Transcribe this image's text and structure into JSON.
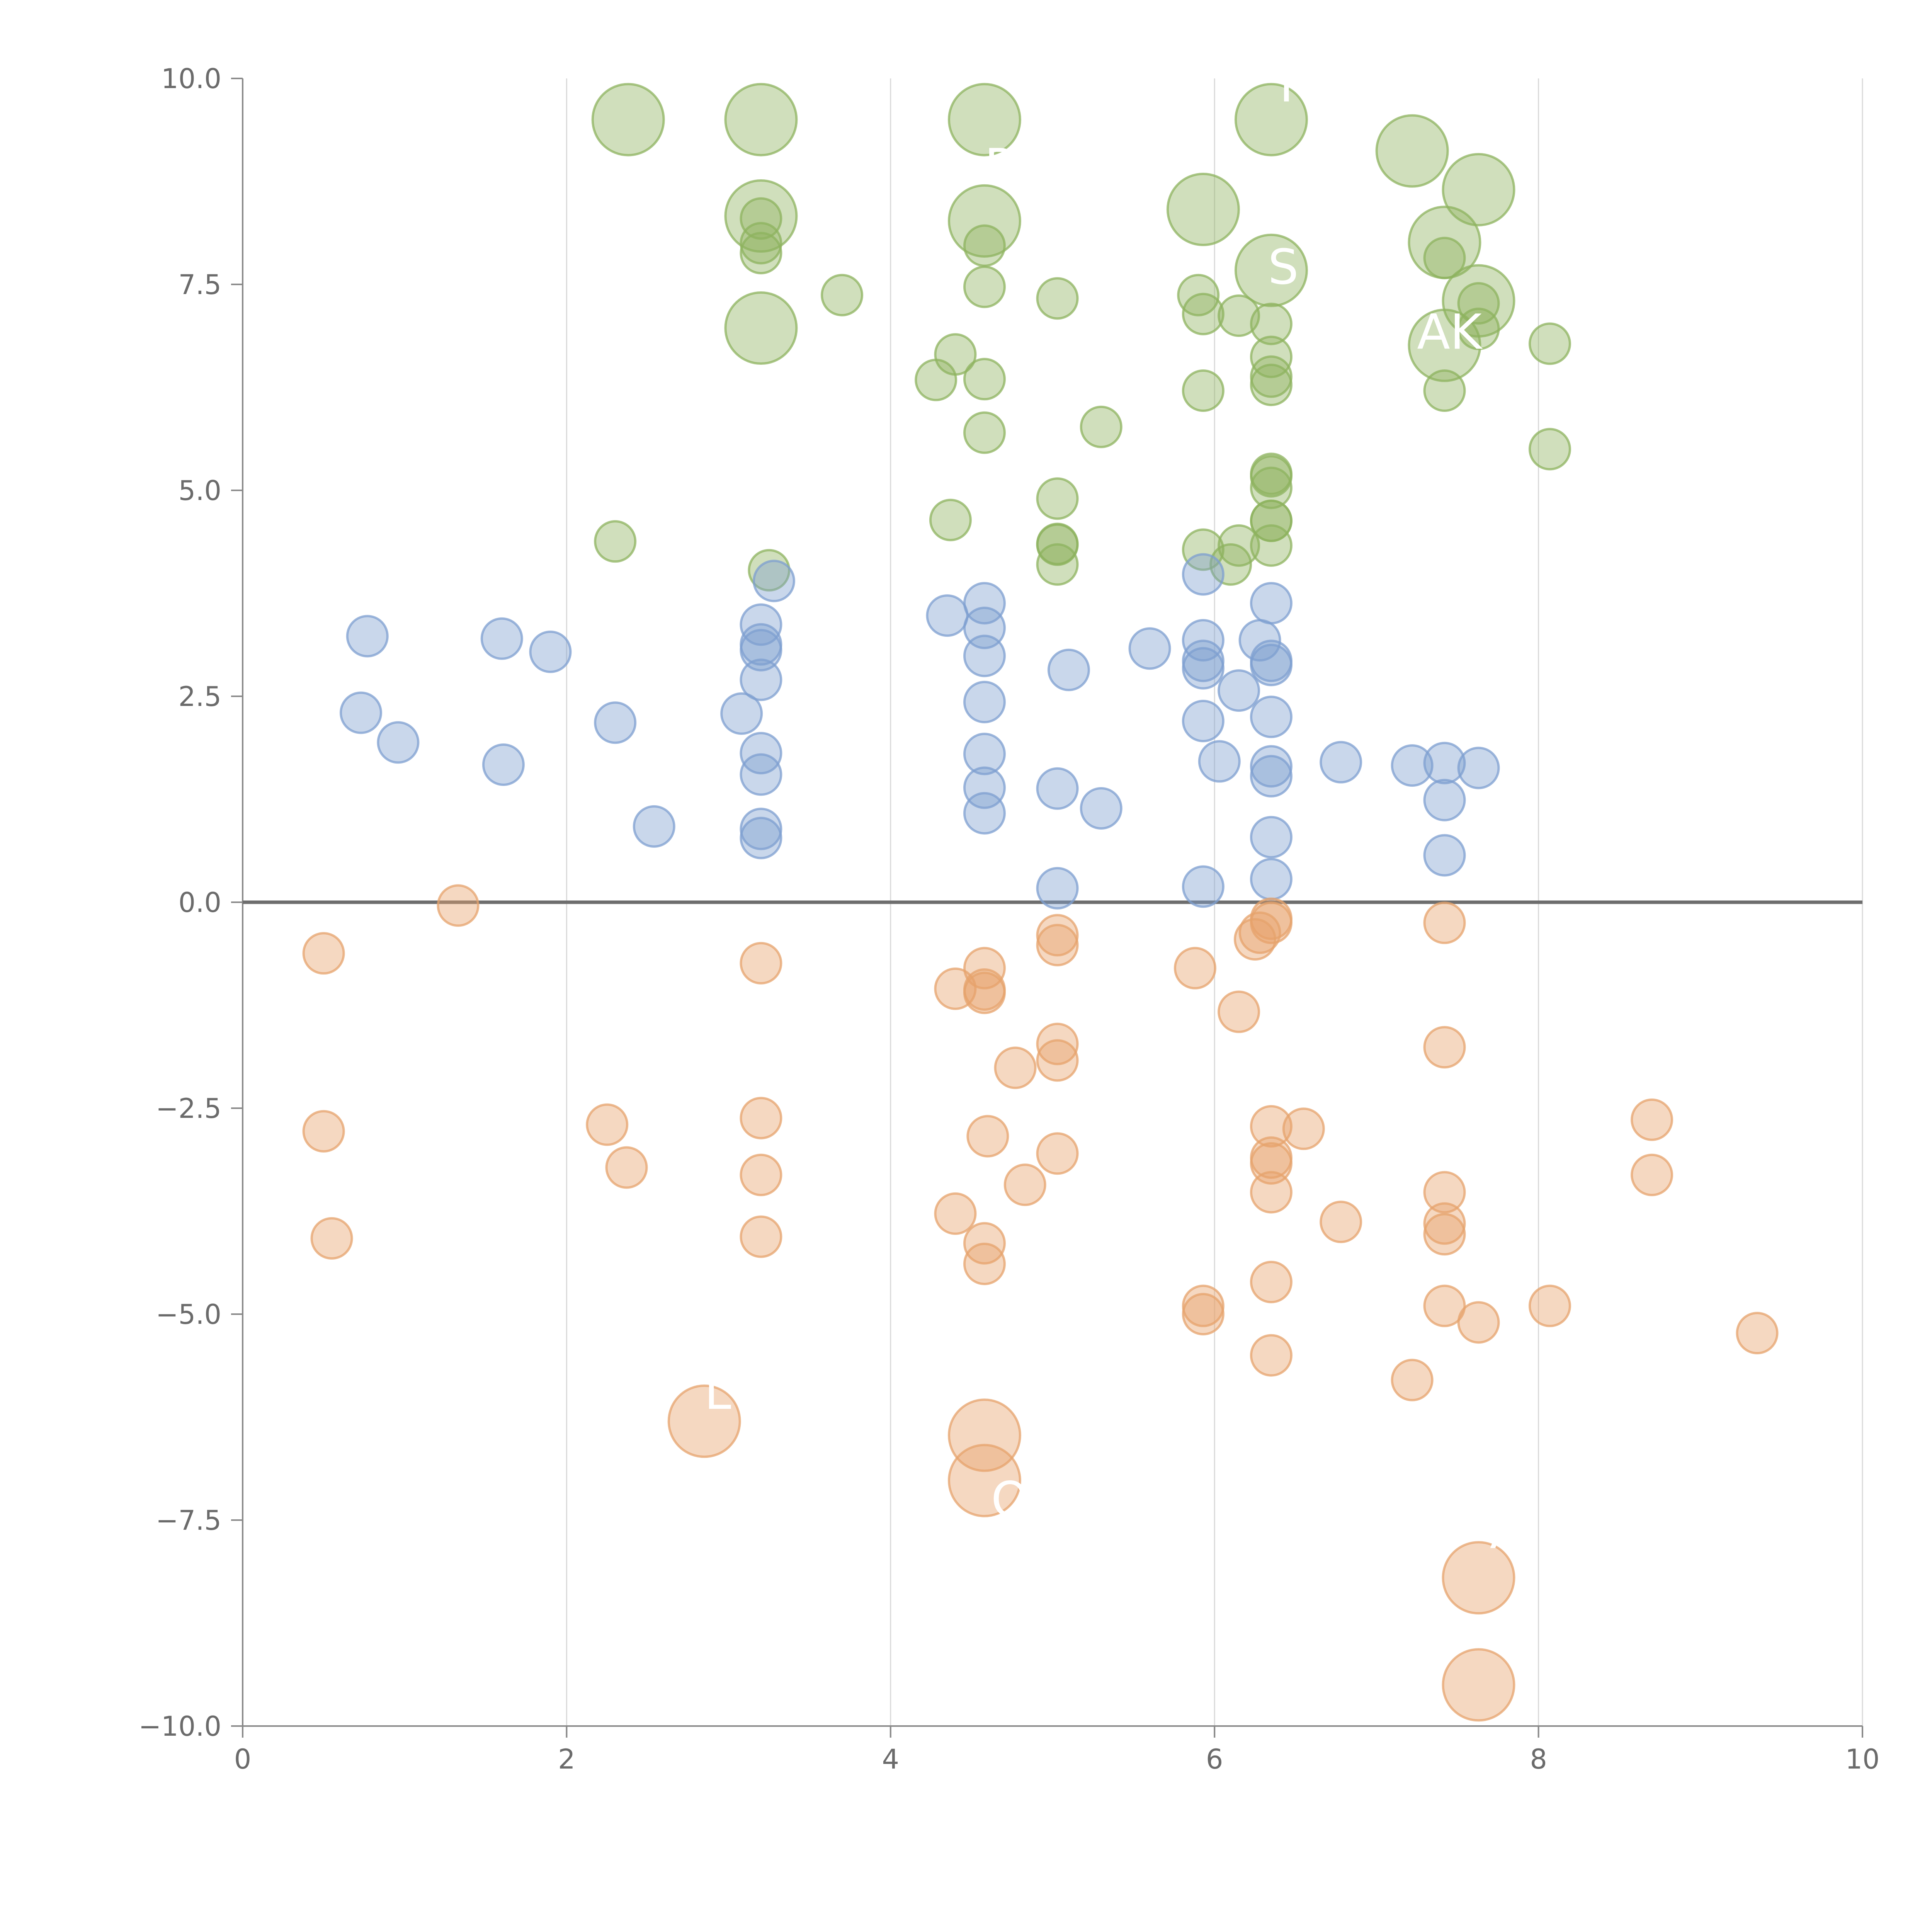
{
  "chart_data": {
    "type": "scatter",
    "title": "",
    "xlabel": "",
    "ylabel": "",
    "xlim": [
      0,
      10
    ],
    "ylim": [
      -10,
      10
    ],
    "x_ticks": [
      "0",
      "2",
      "4",
      "6",
      "8",
      "10"
    ],
    "y_ticks": [
      "−10.0",
      "−7.5",
      "−5.0",
      "−2.5",
      "0.0",
      "2.5",
      "5.0",
      "7.5",
      "10.0"
    ],
    "x_tick_values": [
      0,
      2,
      4,
      6,
      8,
      10
    ],
    "y_tick_values": [
      -10,
      -7.5,
      -5,
      -2.5,
      0,
      2.5,
      5,
      7.5,
      10
    ],
    "grid_x": true,
    "grid_y": false,
    "zero_line": true,
    "series": [
      {
        "color": "#8eb35f",
        "points": [
          [
            2.38,
            9.5,
            2
          ],
          [
            3.2,
            9.5,
            2
          ],
          [
            4.58,
            9.5,
            2
          ],
          [
            6.35,
            9.5,
            2
          ],
          [
            7.22,
            9.12,
            2
          ],
          [
            7.63,
            8.65,
            2
          ],
          [
            3.2,
            8.33,
            2
          ],
          [
            4.58,
            8.27,
            2
          ],
          [
            5.93,
            8.41,
            2
          ],
          [
            7.42,
            8.01,
            2
          ],
          [
            6.35,
            7.67,
            2
          ],
          [
            7.63,
            7.3,
            2
          ],
          [
            3.2,
            6.97,
            2
          ],
          [
            7.42,
            6.76,
            2
          ],
          [
            3.2,
            8.3,
            1
          ],
          [
            3.2,
            8.0,
            1
          ],
          [
            3.2,
            7.88,
            1
          ],
          [
            4.58,
            7.97,
            1
          ],
          [
            4.58,
            7.47,
            1
          ],
          [
            3.7,
            7.37,
            1
          ],
          [
            5.03,
            7.33,
            1
          ],
          [
            5.9,
            7.37,
            1
          ],
          [
            5.93,
            7.14,
            1
          ],
          [
            6.15,
            7.12,
            1
          ],
          [
            6.35,
            7.02,
            1
          ],
          [
            7.42,
            7.82,
            1
          ],
          [
            7.63,
            7.27,
            1
          ],
          [
            7.63,
            6.96,
            1
          ],
          [
            8.07,
            6.78,
            1
          ],
          [
            4.4,
            6.65,
            1
          ],
          [
            4.28,
            6.34,
            1
          ],
          [
            4.58,
            6.35,
            1
          ],
          [
            5.93,
            6.21,
            1
          ],
          [
            6.35,
            6.62,
            1
          ],
          [
            6.35,
            6.38,
            1
          ],
          [
            6.35,
            6.28,
            1
          ],
          [
            7.42,
            6.21,
            1
          ],
          [
            5.3,
            5.77,
            1
          ],
          [
            4.58,
            5.7,
            1
          ],
          [
            8.07,
            5.5,
            1
          ],
          [
            6.35,
            5.2,
            1
          ],
          [
            6.35,
            5.17,
            1
          ],
          [
            6.35,
            5.03,
            1
          ],
          [
            5.03,
            4.9,
            1
          ],
          [
            4.37,
            4.64,
            1
          ],
          [
            6.35,
            4.63,
            1
          ],
          [
            6.35,
            4.63,
            1
          ],
          [
            2.3,
            4.38,
            1
          ],
          [
            5.03,
            4.35,
            1
          ],
          [
            5.03,
            4.34,
            1
          ],
          [
            5.93,
            4.28,
            1
          ],
          [
            6.15,
            4.33,
            1
          ],
          [
            6.35,
            4.33,
            1
          ],
          [
            5.03,
            4.1,
            1
          ],
          [
            6.1,
            4.1,
            1
          ],
          [
            3.25,
            4.03,
            1
          ]
        ]
      },
      {
        "color": "#7e9fd0",
        "points": [
          [
            3.28,
            3.9,
            1
          ],
          [
            5.93,
            3.98,
            1
          ],
          [
            4.35,
            3.48,
            1
          ],
          [
            4.58,
            3.63,
            1
          ],
          [
            6.35,
            3.63,
            1
          ],
          [
            3.2,
            3.37,
            1
          ],
          [
            4.58,
            3.33,
            1
          ],
          [
            0.77,
            3.23,
            1
          ],
          [
            1.6,
            3.2,
            1
          ],
          [
            1.9,
            3.04,
            1
          ],
          [
            3.2,
            3.13,
            1
          ],
          [
            3.2,
            3.06,
            1
          ],
          [
            5.6,
            3.08,
            1
          ],
          [
            5.93,
            3.18,
            1
          ],
          [
            6.28,
            3.18,
            1
          ],
          [
            4.58,
            2.99,
            1
          ],
          [
            5.93,
            2.93,
            1
          ],
          [
            5.93,
            2.84,
            1
          ],
          [
            6.35,
            2.93,
            1
          ],
          [
            6.35,
            2.88,
            1
          ],
          [
            5.1,
            2.82,
            1
          ],
          [
            3.2,
            2.7,
            1
          ],
          [
            6.15,
            2.57,
            1
          ],
          [
            4.58,
            2.43,
            1
          ],
          [
            0.73,
            2.3,
            1
          ],
          [
            3.08,
            2.29,
            1
          ],
          [
            2.3,
            2.18,
            1
          ],
          [
            5.93,
            2.2,
            1
          ],
          [
            6.35,
            2.25,
            1
          ],
          [
            0.96,
            1.94,
            1
          ],
          [
            3.2,
            1.81,
            1
          ],
          [
            4.58,
            1.8,
            1
          ],
          [
            6.03,
            1.71,
            1
          ],
          [
            6.78,
            1.7,
            1
          ],
          [
            7.22,
            1.66,
            1
          ],
          [
            7.42,
            1.69,
            1
          ],
          [
            7.63,
            1.63,
            1
          ],
          [
            1.61,
            1.67,
            1
          ],
          [
            6.35,
            1.65,
            1
          ],
          [
            6.35,
            1.53,
            1
          ],
          [
            3.2,
            1.55,
            1
          ],
          [
            4.58,
            1.39,
            1
          ],
          [
            5.03,
            1.38,
            1
          ],
          [
            7.42,
            1.24,
            1
          ],
          [
            5.3,
            1.14,
            1
          ],
          [
            4.58,
            1.08,
            1
          ],
          [
            2.54,
            0.92,
            1
          ],
          [
            3.2,
            0.89,
            1
          ],
          [
            3.2,
            0.78,
            1
          ],
          [
            6.35,
            0.79,
            1
          ],
          [
            7.42,
            0.57,
            1
          ],
          [
            6.35,
            0.28,
            1
          ],
          [
            5.03,
            0.17,
            1
          ],
          [
            5.93,
            0.19,
            1
          ]
        ]
      },
      {
        "color": "#e6a36c",
        "points": [
          [
            1.33,
            -0.04,
            1
          ],
          [
            0.5,
            -0.62,
            1
          ],
          [
            3.2,
            -0.74,
            1
          ],
          [
            5.03,
            -0.4,
            1
          ],
          [
            5.03,
            -0.52,
            1
          ],
          [
            6.35,
            -0.2,
            1
          ],
          [
            6.35,
            -0.25,
            1
          ],
          [
            6.28,
            -0.37,
            1
          ],
          [
            6.25,
            -0.45,
            1
          ],
          [
            7.42,
            -0.25,
            1
          ],
          [
            4.58,
            -0.8,
            1
          ],
          [
            5.88,
            -0.8,
            1
          ],
          [
            4.4,
            -1.05,
            1
          ],
          [
            4.58,
            -1.06,
            1
          ],
          [
            4.58,
            -1.1,
            1
          ],
          [
            6.15,
            -1.33,
            1
          ],
          [
            7.42,
            -1.76,
            1
          ],
          [
            5.03,
            -1.72,
            1
          ],
          [
            5.03,
            -1.92,
            1
          ],
          [
            4.77,
            -2.01,
            1
          ],
          [
            3.2,
            -2.62,
            1
          ],
          [
            2.25,
            -2.7,
            1
          ],
          [
            0.5,
            -2.78,
            1
          ],
          [
            6.35,
            -2.72,
            1
          ],
          [
            6.55,
            -2.75,
            1
          ],
          [
            8.7,
            -2.64,
            1
          ],
          [
            4.6,
            -2.84,
            1
          ],
          [
            2.37,
            -3.22,
            1
          ],
          [
            3.2,
            -3.31,
            1
          ],
          [
            5.03,
            -3.05,
            1
          ],
          [
            6.35,
            -3.1,
            1
          ],
          [
            6.35,
            -3.17,
            1
          ],
          [
            8.7,
            -3.31,
            1
          ],
          [
            4.83,
            -3.43,
            1
          ],
          [
            6.35,
            -3.52,
            1
          ],
          [
            7.42,
            -3.52,
            1
          ],
          [
            4.4,
            -3.78,
            1
          ],
          [
            6.78,
            -3.88,
            1
          ],
          [
            7.42,
            -3.9,
            1
          ],
          [
            7.42,
            -4.03,
            1
          ],
          [
            0.55,
            -4.08,
            1
          ],
          [
            3.2,
            -4.06,
            1
          ],
          [
            4.58,
            -4.14,
            1
          ],
          [
            4.58,
            -4.39,
            1
          ],
          [
            6.35,
            -4.61,
            1
          ],
          [
            5.93,
            -4.9,
            1
          ],
          [
            5.93,
            -5.0,
            1
          ],
          [
            7.42,
            -4.9,
            1
          ],
          [
            8.07,
            -4.9,
            1
          ],
          [
            7.63,
            -5.1,
            1
          ],
          [
            9.35,
            -5.23,
            1
          ],
          [
            6.35,
            -5.5,
            1
          ],
          [
            7.22,
            -5.8,
            1
          ],
          [
            2.85,
            -6.3,
            2
          ],
          [
            4.58,
            -6.47,
            2
          ],
          [
            4.58,
            -7.02,
            2
          ],
          [
            7.63,
            -8.2,
            2
          ],
          [
            7.63,
            -9.5,
            2
          ]
        ]
      }
    ],
    "labels": [
      {
        "text": "IO",
        "x": 6.4,
        "y": 9.72
      },
      {
        "text": "R",
        "x": 4.58,
        "y": 8.73
      },
      {
        "text": "S",
        "x": 6.33,
        "y": 7.51
      },
      {
        "text": "AK",
        "x": 7.25,
        "y": 6.72
      },
      {
        "text": "L",
        "x": 2.85,
        "y": -6.15
      },
      {
        "text": "O",
        "x": 4.62,
        "y": -7.45
      },
      {
        "text": "A",
        "x": 7.7,
        "y": -7.84
      }
    ]
  }
}
